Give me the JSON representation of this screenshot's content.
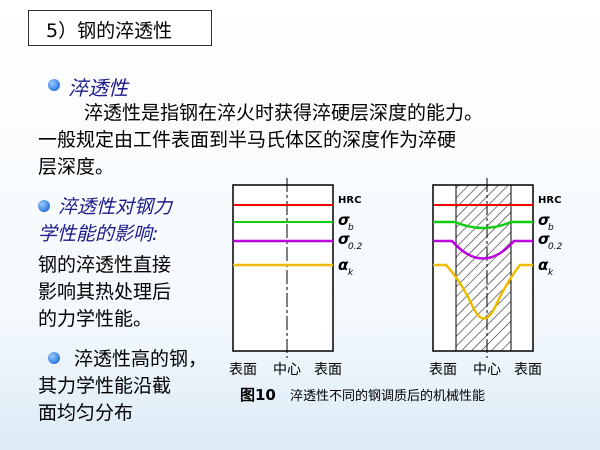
{
  "title": "5）钢的淬透性",
  "sections": [
    {
      "heading": "淬透性",
      "lines": [
        "淬透性是指钢在淬火时获得淬硬层深度的能力。",
        "一般规定由工件表面到半马氏体区的深度作为淬硬",
        "层深度。"
      ]
    },
    {
      "heading_lines": [
        "淬透性对钢力",
        "学性能的影响:"
      ],
      "lines": [
        "钢的淬透性直接",
        "影响其热处理后",
        "的力学性能。"
      ]
    },
    {
      "lines": [
        "淬透性高的钢，",
        "其力学性能沿截",
        "面均匀分布"
      ]
    }
  ],
  "figure": {
    "labels": [
      {
        "symbol": "HRC"
      },
      {
        "symbol": "σ",
        "sub": "b"
      },
      {
        "symbol": "σ",
        "sub": "0.2"
      },
      {
        "symbol": "α",
        "sub": "k"
      }
    ],
    "axis": [
      "表面",
      "中心",
      "表面"
    ],
    "caption_number": "图10",
    "caption": "淬透性不同的钢调质后的机械性能"
  }
}
